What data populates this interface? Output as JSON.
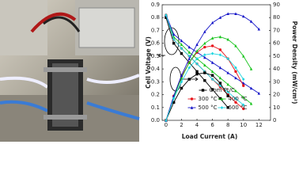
{
  "chart_data": {
    "type": "line",
    "xlabel": "Load Current (A)",
    "ylabel": "Cell Voltage (V)",
    "y2label": "Power Density (mW/cm²)",
    "xlim": [
      -0.5,
      13.5
    ],
    "xticks": [
      0,
      2,
      4,
      6,
      8,
      10,
      12
    ],
    "ylim": [
      0,
      0.9
    ],
    "yticks": [
      {
        "value": 0,
        "label": "0.0"
      },
      0.1,
      0.2,
      0.3,
      0.4,
      0.5,
      0.6,
      0.7,
      0.8,
      0.9
    ],
    "y2lim": [
      0,
      90
    ],
    "y2ticks": [
      0,
      10,
      20,
      30,
      40,
      50,
      60,
      70,
      80,
      90
    ],
    "legend": "lower center",
    "series": [
      {
        "name": "Com Pt/C",
        "color": "#000000",
        "marker": "square",
        "x": [
          0,
          1,
          2,
          3,
          4,
          5,
          6,
          7,
          8
        ],
        "values": [
          0.8,
          0.6,
          0.52,
          0.45,
          0.38,
          0.31,
          0.24,
          0.17,
          0.1
        ]
      },
      {
        "name": "300 °C",
        "color": "#e8141b",
        "marker": "circle",
        "x": [
          0,
          1,
          2,
          3,
          4,
          5,
          6,
          7,
          8,
          9,
          10
        ],
        "values": [
          0.82,
          0.63,
          0.56,
          0.5,
          0.44,
          0.38,
          0.32,
          0.26,
          0.2,
          0.14,
          0.09
        ]
      },
      {
        "name": "400 °C",
        "color": "#19c41e",
        "marker": "triangle",
        "x": [
          0,
          1,
          2,
          3,
          4,
          5,
          6,
          7,
          8,
          9,
          10,
          11
        ],
        "values": [
          0.82,
          0.65,
          0.59,
          0.53,
          0.48,
          0.43,
          0.38,
          0.33,
          0.28,
          0.23,
          0.18,
          0.13
        ]
      },
      {
        "name": "500 °C",
        "color": "#1515c8",
        "marker": "triangle",
        "x": [
          0,
          1,
          2,
          3,
          4,
          5,
          6,
          7,
          8,
          9,
          10,
          11,
          12
        ],
        "values": [
          0.82,
          0.67,
          0.62,
          0.57,
          0.53,
          0.49,
          0.45,
          0.41,
          0.37,
          0.33,
          0.29,
          0.25,
          0.21
        ]
      },
      {
        "name": "600 °C",
        "color": "#1fd6e0",
        "marker": "diamond",
        "x": [
          0,
          1,
          2,
          3,
          4,
          5,
          6,
          7,
          8,
          9,
          10
        ],
        "values": [
          0.82,
          0.63,
          0.56,
          0.5,
          0.44,
          0.38,
          0.32,
          0.27,
          0.22,
          0.17,
          0.12
        ]
      },
      {
        "color": "#000000",
        "marker": "square",
        "axis": "y2",
        "x": [
          0,
          1,
          2,
          3,
          4,
          5,
          6,
          7,
          8
        ],
        "values": [
          0,
          14,
          25,
          32,
          36,
          37,
          35,
          29,
          19
        ]
      },
      {
        "color": "#e8141b",
        "marker": "circle",
        "axis": "y2",
        "x": [
          0,
          1,
          2,
          3,
          4,
          5,
          6,
          7,
          8,
          9,
          10
        ],
        "values": [
          0,
          19,
          34,
          45,
          53,
          57,
          58,
          55,
          48,
          38,
          27
        ]
      },
      {
        "color": "#19c41e",
        "marker": "triangle",
        "axis": "y2",
        "x": [
          0,
          1,
          2,
          3,
          4,
          5,
          6,
          7,
          8,
          9,
          10,
          11
        ],
        "values": [
          0,
          18,
          33,
          45,
          54,
          60,
          64,
          65,
          63,
          58,
          50,
          40
        ]
      },
      {
        "color": "#1515c8",
        "marker": "triangle",
        "axis": "y2",
        "x": [
          0,
          1,
          2,
          3,
          4,
          5,
          6,
          7,
          8,
          9,
          10,
          11,
          12
        ],
        "values": [
          0,
          19,
          35,
          48,
          59,
          69,
          76,
          80,
          83,
          83,
          81,
          77,
          71
        ]
      },
      {
        "color": "#1fd6e0",
        "marker": "diamond",
        "axis": "y2",
        "x": [
          0,
          1,
          2,
          3,
          4,
          5,
          6,
          7,
          8,
          9,
          10
        ],
        "values": [
          0,
          17,
          30,
          41,
          48,
          51,
          52,
          51,
          48,
          41,
          32
        ]
      }
    ]
  }
}
